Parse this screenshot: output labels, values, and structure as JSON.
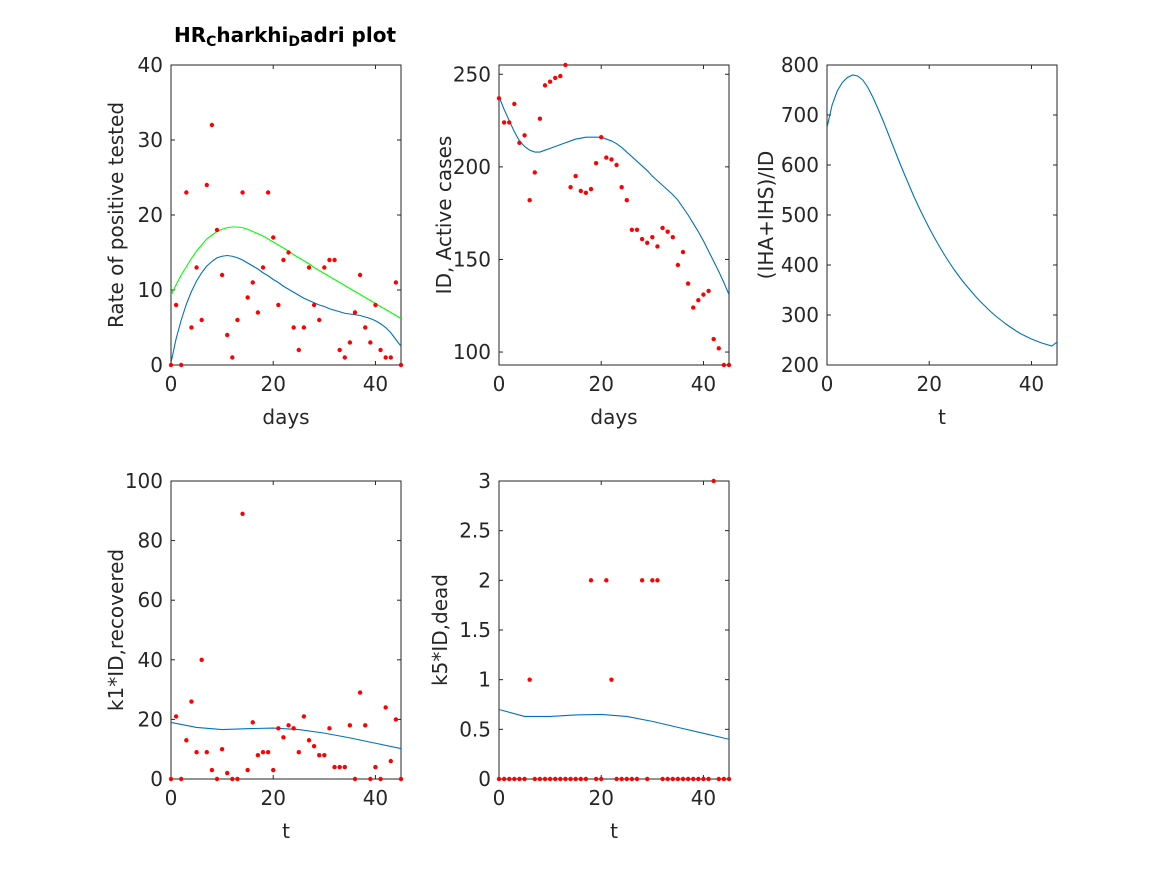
{
  "figure": {
    "title": "HR",
    "title_sub1": "C",
    "title_mid": "harkhi",
    "title_sub2": "D",
    "title_end": "adri plot"
  },
  "colors": {
    "data_points": "#ff0000",
    "fit_line": "#0072bd",
    "bound_line": "#00ff00",
    "axes": "#262626"
  },
  "chart_data": [
    {
      "id": "p1",
      "type": "line",
      "xlabel": "days",
      "ylabel": "Rate of positive tested",
      "xlim": [
        0,
        45
      ],
      "ylim": [
        0,
        40
      ],
      "xticks": [
        0,
        20,
        40
      ],
      "yticks": [
        0,
        10,
        20,
        30,
        40
      ],
      "grid": false,
      "scatter": {
        "x": [
          0,
          1,
          2,
          3,
          4,
          5,
          6,
          7,
          8,
          9,
          10,
          11,
          12,
          13,
          14,
          15,
          16,
          17,
          18,
          19,
          20,
          21,
          22,
          23,
          24,
          25,
          26,
          27,
          28,
          29,
          30,
          31,
          32,
          33,
          34,
          35,
          36,
          37,
          38,
          39,
          40,
          41,
          42,
          43,
          44,
          45
        ],
        "y": [
          0,
          8,
          0,
          23,
          5,
          13,
          6,
          24,
          32,
          18,
          12,
          4,
          1,
          6,
          23,
          9,
          11,
          7,
          13,
          23,
          17,
          8,
          14,
          15,
          5,
          2,
          5,
          13,
          8,
          6,
          13,
          14,
          14,
          2,
          1,
          3,
          7,
          12,
          5,
          3,
          8,
          2,
          1,
          1,
          11,
          0
        ]
      },
      "lines": [
        {
          "color": "#0072bd",
          "x": [
            0,
            1,
            2,
            3,
            4,
            5,
            6,
            7,
            8,
            9,
            10,
            11,
            12,
            13,
            14,
            15,
            16,
            17,
            18,
            19,
            20,
            21,
            22,
            23,
            24,
            25,
            26,
            27,
            28,
            29,
            30,
            31,
            32,
            33,
            34,
            35,
            36,
            37,
            38,
            39,
            40,
            41,
            42,
            43,
            44,
            45
          ],
          "y": [
            0.3,
            3.5,
            6,
            8.1,
            9.8,
            11.2,
            12.3,
            13.2,
            13.8,
            14.3,
            14.5,
            14.6,
            14.5,
            14.3,
            14,
            13.6,
            13.2,
            12.8,
            12.3,
            11.9,
            11.4,
            11,
            10.5,
            10.1,
            9.7,
            9.3,
            8.9,
            8.6,
            8.3,
            8,
            7.8,
            7.5,
            7.3,
            7.1,
            6.9,
            6.8,
            6.7,
            6.6,
            6.4,
            6.2,
            5.9,
            5.5,
            5,
            4.3,
            3.4,
            2.5
          ]
        },
        {
          "color": "#00ff00",
          "x": [
            0,
            1,
            2,
            3,
            4,
            5,
            6,
            7,
            8,
            9,
            10,
            11,
            12,
            13,
            14,
            15,
            16,
            17,
            18,
            19,
            20,
            21,
            22,
            23,
            24,
            25,
            26,
            27,
            28,
            29,
            30,
            31,
            32,
            33,
            34,
            35,
            36,
            37,
            38,
            39,
            40,
            41,
            42,
            43,
            44,
            45
          ],
          "y": [
            9.3,
            10.7,
            12,
            13.1,
            14.2,
            15.2,
            16,
            16.8,
            17.3,
            17.8,
            18.1,
            18.3,
            18.4,
            18.4,
            18.3,
            18.1,
            17.8,
            17.5,
            17.2,
            16.8,
            16.4,
            16,
            15.6,
            15.2,
            14.7,
            14.3,
            13.9,
            13.5,
            13,
            12.6,
            12.2,
            11.8,
            11.4,
            11,
            10.6,
            10.2,
            9.8,
            9.4,
            9,
            8.6,
            8.2,
            7.8,
            7.4,
            7,
            6.6,
            6.2
          ]
        }
      ]
    },
    {
      "id": "p2",
      "type": "line",
      "xlabel": "days",
      "ylabel": "ID, Active cases",
      "xlim": [
        0,
        45
      ],
      "ylim": [
        93,
        255
      ],
      "xticks": [
        0,
        20,
        40
      ],
      "yticks": [
        100,
        150,
        200,
        250
      ],
      "grid": false,
      "scatter": {
        "x": [
          0,
          1,
          2,
          3,
          4,
          5,
          6,
          7,
          8,
          9,
          10,
          11,
          12,
          13,
          14,
          15,
          16,
          17,
          18,
          19,
          20,
          21,
          22,
          23,
          24,
          25,
          26,
          27,
          28,
          29,
          30,
          31,
          32,
          33,
          34,
          35,
          36,
          37,
          38,
          39,
          40,
          41,
          42,
          43,
          44,
          45
        ],
        "y": [
          237,
          224,
          224,
          234,
          213,
          217,
          182,
          197,
          226,
          244,
          246,
          248,
          249,
          255,
          189,
          195,
          187,
          186,
          188,
          202,
          216,
          205,
          204,
          201,
          189,
          182,
          166,
          166,
          161,
          159,
          162,
          157,
          167,
          165,
          162,
          147,
          154,
          137,
          124,
          128,
          131,
          133,
          107,
          102,
          93,
          93
        ]
      },
      "lines": [
        {
          "color": "#0072bd",
          "x": [
            0,
            1,
            2,
            3,
            4,
            5,
            6,
            7,
            8,
            9,
            10,
            11,
            12,
            13,
            14,
            15,
            16,
            17,
            18,
            19,
            20,
            21,
            22,
            23,
            24,
            25,
            26,
            27,
            28,
            29,
            30,
            31,
            32,
            33,
            34,
            35,
            36,
            37,
            38,
            39,
            40,
            41,
            42,
            43,
            44,
            45
          ],
          "y": [
            238,
            231,
            225,
            219,
            214,
            211,
            209,
            208,
            208,
            209,
            210,
            211,
            212,
            213,
            214,
            215,
            215.5,
            216,
            216,
            216,
            216,
            215,
            214,
            212.5,
            210.5,
            208,
            205.5,
            203,
            200.5,
            198,
            195,
            192.5,
            190,
            187.5,
            185,
            182,
            178,
            174,
            169.5,
            165,
            160,
            154.5,
            149,
            143.5,
            137.5,
            131
          ]
        }
      ]
    },
    {
      "id": "p3",
      "type": "line",
      "xlabel": "t",
      "ylabel": "(IHA+IHS)/ID",
      "xlim": [
        0,
        45
      ],
      "ylim": [
        200,
        800
      ],
      "xticks": [
        0,
        20,
        40
      ],
      "yticks": [
        200,
        300,
        400,
        500,
        600,
        700,
        800
      ],
      "grid": false,
      "lines": [
        {
          "color": "#0072bd",
          "x": [
            0,
            1,
            2,
            3,
            4,
            5,
            6,
            7,
            8,
            9,
            10,
            11,
            12,
            13,
            14,
            15,
            16,
            17,
            18,
            19,
            20,
            21,
            22,
            23,
            24,
            25,
            26,
            27,
            28,
            29,
            30,
            31,
            32,
            33,
            34,
            35,
            36,
            37,
            38,
            39,
            40,
            41,
            42,
            43,
            44,
            45
          ],
          "y": [
            675,
            720,
            748,
            765,
            775,
            780,
            778,
            770,
            755,
            735,
            712,
            688,
            662,
            636,
            610,
            585,
            561,
            537,
            515,
            494,
            474,
            455,
            437,
            420,
            404,
            389,
            375,
            362,
            350,
            338,
            327,
            317,
            307,
            298,
            290,
            282,
            275,
            268,
            262,
            257,
            252,
            248,
            244,
            241,
            238,
            246
          ]
        }
      ]
    },
    {
      "id": "p4",
      "type": "line",
      "xlabel": "t",
      "ylabel": "k1*ID,recovered",
      "xlim": [
        0,
        45
      ],
      "ylim": [
        0,
        100
      ],
      "xticks": [
        0,
        20,
        40
      ],
      "yticks": [
        0,
        20,
        40,
        60,
        80,
        100
      ],
      "grid": false,
      "scatter": {
        "x": [
          0,
          1,
          2,
          3,
          4,
          5,
          6,
          7,
          8,
          9,
          10,
          11,
          12,
          13,
          14,
          15,
          16,
          17,
          18,
          19,
          20,
          21,
          22,
          23,
          24,
          25,
          26,
          27,
          28,
          29,
          30,
          31,
          32,
          33,
          34,
          35,
          36,
          37,
          38,
          39,
          40,
          41,
          42,
          43,
          44,
          45
        ],
        "y": [
          0,
          21,
          0,
          13,
          26,
          9,
          40,
          9,
          3,
          0,
          10,
          2,
          0,
          0,
          89,
          3,
          19,
          8,
          9,
          9,
          3,
          17,
          14,
          18,
          17,
          9,
          21,
          13,
          11,
          8,
          8,
          17,
          4,
          4,
          4,
          18,
          0,
          29,
          18,
          0,
          4,
          0,
          24,
          6,
          20,
          0
        ]
      },
      "lines": [
        {
          "color": "#0072bd",
          "x": [
            0,
            5,
            10,
            15,
            20,
            25,
            30,
            35,
            40,
            45
          ],
          "y": [
            19,
            17.3,
            16.6,
            16.9,
            17.1,
            16.6,
            15.4,
            13.8,
            12,
            10.2
          ]
        }
      ]
    },
    {
      "id": "p5",
      "type": "line",
      "xlabel": "t",
      "ylabel": "k5*ID,dead",
      "xlim": [
        0,
        45
      ],
      "ylim": [
        0,
        3
      ],
      "xticks": [
        0,
        20,
        40
      ],
      "yticks": [
        0,
        0.5,
        1,
        1.5,
        2,
        2.5,
        3
      ],
      "grid": false,
      "scatter": {
        "x": [
          0,
          1,
          2,
          3,
          4,
          5,
          6,
          7,
          8,
          9,
          10,
          11,
          12,
          13,
          14,
          15,
          16,
          17,
          18,
          19,
          20,
          21,
          22,
          23,
          24,
          25,
          26,
          27,
          28,
          29,
          30,
          31,
          32,
          33,
          34,
          35,
          36,
          37,
          38,
          39,
          40,
          41,
          42,
          43,
          44,
          45
        ],
        "y": [
          0,
          0,
          0,
          0,
          0,
          0,
          1,
          0,
          0,
          0,
          0,
          0,
          0,
          0,
          0,
          0,
          0,
          0,
          2,
          0,
          0,
          2,
          1,
          0,
          0,
          0,
          0,
          0,
          2,
          0,
          2,
          2,
          0,
          0,
          0,
          0,
          0,
          0,
          0,
          0,
          0,
          0,
          3,
          0,
          0,
          0
        ]
      },
      "lines": [
        {
          "color": "#0072bd",
          "x": [
            0,
            5,
            10,
            15,
            20,
            25,
            30,
            35,
            40,
            45
          ],
          "y": [
            0.7,
            0.63,
            0.63,
            0.645,
            0.65,
            0.63,
            0.58,
            0.52,
            0.46,
            0.4
          ]
        }
      ]
    }
  ]
}
